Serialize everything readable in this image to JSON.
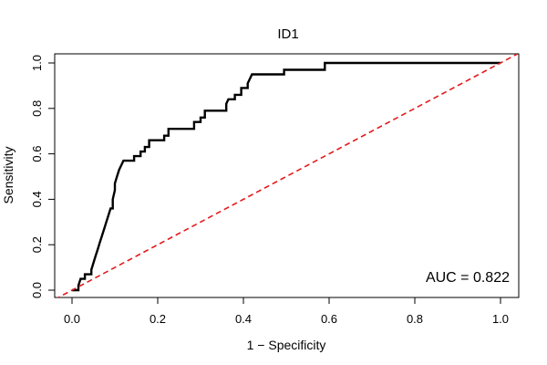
{
  "chart_data": {
    "type": "line",
    "title": "ID1",
    "xlabel": "1 − Specificity",
    "ylabel": "Sensitivity",
    "xlim": [
      0,
      1
    ],
    "ylim": [
      0,
      1
    ],
    "xticks": [
      "0.0",
      "0.2",
      "0.4",
      "0.6",
      "0.8",
      "1.0"
    ],
    "yticks": [
      "0.0",
      "0.2",
      "0.4",
      "0.6",
      "0.8",
      "1.0"
    ],
    "annotation": "AUC = 0.822",
    "grid": false,
    "series": [
      {
        "color": "#000000",
        "style": "solid",
        "points": [
          [
            0.0,
            0.0
          ],
          [
            0.015,
            0.0
          ],
          [
            0.015,
            0.02
          ],
          [
            0.02,
            0.05
          ],
          [
            0.03,
            0.05
          ],
          [
            0.03,
            0.07
          ],
          [
            0.045,
            0.07
          ],
          [
            0.045,
            0.09
          ],
          [
            0.05,
            0.12
          ],
          [
            0.055,
            0.15
          ],
          [
            0.06,
            0.18
          ],
          [
            0.065,
            0.21
          ],
          [
            0.07,
            0.24
          ],
          [
            0.075,
            0.27
          ],
          [
            0.08,
            0.3
          ],
          [
            0.085,
            0.33
          ],
          [
            0.09,
            0.36
          ],
          [
            0.095,
            0.36
          ],
          [
            0.095,
            0.4
          ],
          [
            0.1,
            0.44
          ],
          [
            0.1,
            0.47
          ],
          [
            0.105,
            0.5
          ],
          [
            0.11,
            0.53
          ],
          [
            0.115,
            0.55
          ],
          [
            0.12,
            0.57
          ],
          [
            0.145,
            0.57
          ],
          [
            0.145,
            0.59
          ],
          [
            0.16,
            0.59
          ],
          [
            0.16,
            0.61
          ],
          [
            0.17,
            0.61
          ],
          [
            0.17,
            0.63
          ],
          [
            0.18,
            0.63
          ],
          [
            0.18,
            0.66
          ],
          [
            0.215,
            0.66
          ],
          [
            0.215,
            0.68
          ],
          [
            0.225,
            0.68
          ],
          [
            0.225,
            0.71
          ],
          [
            0.285,
            0.71
          ],
          [
            0.285,
            0.74
          ],
          [
            0.3,
            0.74
          ],
          [
            0.3,
            0.76
          ],
          [
            0.31,
            0.76
          ],
          [
            0.31,
            0.79
          ],
          [
            0.36,
            0.79
          ],
          [
            0.36,
            0.82
          ],
          [
            0.365,
            0.84
          ],
          [
            0.38,
            0.84
          ],
          [
            0.38,
            0.86
          ],
          [
            0.395,
            0.86
          ],
          [
            0.395,
            0.89
          ],
          [
            0.41,
            0.89
          ],
          [
            0.41,
            0.91
          ],
          [
            0.42,
            0.95
          ],
          [
            0.495,
            0.95
          ],
          [
            0.495,
            0.97
          ],
          [
            0.59,
            0.97
          ],
          [
            0.59,
            1.0
          ],
          [
            1.0,
            1.0
          ]
        ]
      },
      {
        "color": "#e41a1c",
        "style": "dashed",
        "points": [
          [
            -0.04,
            -0.04
          ],
          [
            1.04,
            1.04
          ]
        ]
      }
    ]
  }
}
